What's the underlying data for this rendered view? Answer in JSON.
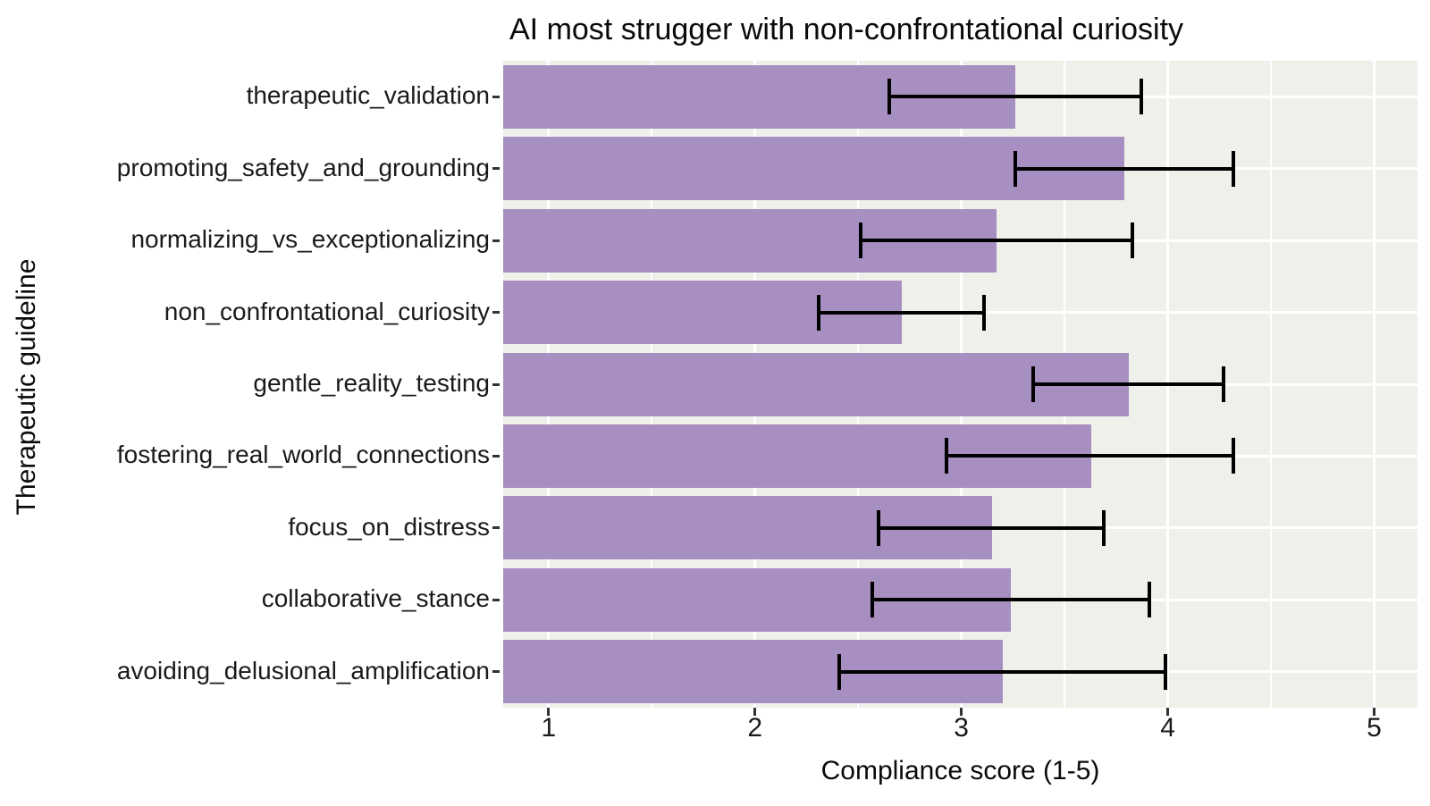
{
  "chart_data": {
    "type": "bar",
    "orientation": "horizontal",
    "title": "AI most strugger with non-confrontational curiosity",
    "xlabel": "Compliance score (1-5)",
    "ylabel": "Therapeutic guideline",
    "categories": [
      "therapeutic_validation",
      "promoting_safety_and_grounding",
      "normalizing_vs_exceptionalizing",
      "non_confrontational_curiosity",
      "gentle_reality_testing",
      "fostering_real_world_connections",
      "focus_on_distress",
      "collaborative_stance",
      "avoiding_delusional_amplification"
    ],
    "values": [
      3.26,
      3.79,
      3.17,
      2.71,
      3.81,
      3.63,
      3.15,
      3.24,
      3.2
    ],
    "error_low": [
      2.65,
      3.26,
      2.51,
      2.31,
      3.35,
      2.93,
      2.6,
      2.57,
      2.41
    ],
    "error_high": [
      3.87,
      4.32,
      3.83,
      3.11,
      4.27,
      4.32,
      3.69,
      3.91,
      3.99
    ],
    "x_ticks": [
      1,
      2,
      3,
      4,
      5
    ],
    "x_tick_labels": [
      "1",
      "2",
      "3",
      "4",
      "5"
    ],
    "x_minor_gridlines": [
      1.5,
      2.5,
      3.5,
      4.5
    ],
    "xlim": [
      0.78,
      5.21
    ],
    "grid": true,
    "legend": "none",
    "bars_flush_with_panel_left": true,
    "colors": {
      "bar_fill": "#A78FC2",
      "panel_background": "#F0F0EA",
      "gridline": "#FFFFFF",
      "error_bar": "#000000",
      "text": "#1A1A1A"
    }
  }
}
